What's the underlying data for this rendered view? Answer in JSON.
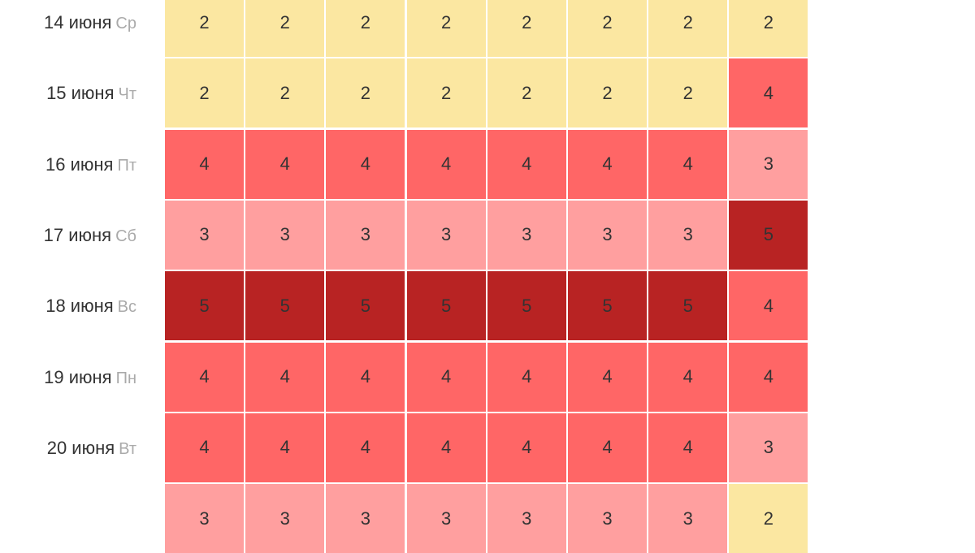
{
  "level_colors": {
    "2": "#fbe7a1",
    "3": "#ff9f9f",
    "4": "#ff6666",
    "5": "#b82323"
  },
  "rows": [
    {
      "date": "14 июня",
      "dow": "Ср",
      "values": [
        2,
        2,
        2,
        2,
        2,
        2,
        2,
        2
      ]
    },
    {
      "date": "15 июня",
      "dow": "Чт",
      "values": [
        2,
        2,
        2,
        2,
        2,
        2,
        2,
        4
      ]
    },
    {
      "date": "16 июня",
      "dow": "Пт",
      "values": [
        4,
        4,
        4,
        4,
        4,
        4,
        4,
        3
      ]
    },
    {
      "date": "17 июня",
      "dow": "Сб",
      "values": [
        3,
        3,
        3,
        3,
        3,
        3,
        3,
        5
      ]
    },
    {
      "date": "18 июня",
      "dow": "Вс",
      "values": [
        5,
        5,
        5,
        5,
        5,
        5,
        5,
        4
      ]
    },
    {
      "date": "19 июня",
      "dow": "Пн",
      "values": [
        4,
        4,
        4,
        4,
        4,
        4,
        4,
        4
      ]
    },
    {
      "date": "20 июня",
      "dow": "Вт",
      "values": [
        4,
        4,
        4,
        4,
        4,
        4,
        4,
        3
      ]
    },
    {
      "values": [
        3,
        3,
        3,
        3,
        3,
        3,
        3,
        2
      ]
    }
  ]
}
